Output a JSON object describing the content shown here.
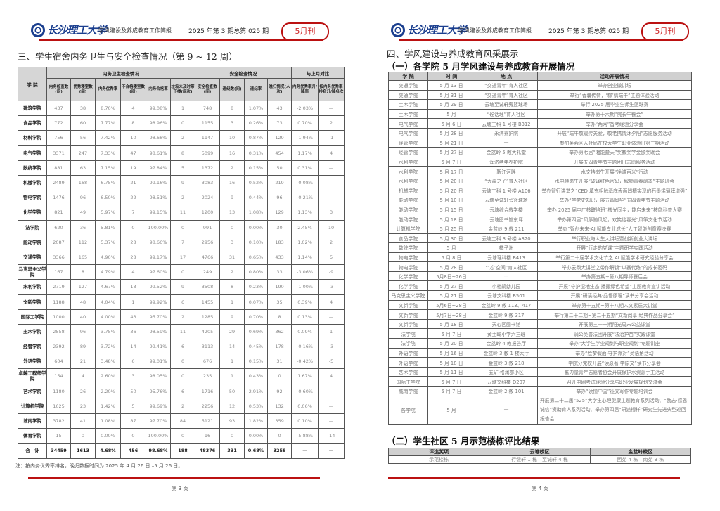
{
  "header": {
    "logo_text": "长沙理工大学",
    "brief_title": "学风建设及养成教育工作简报",
    "issue": "2025 年第 3 期总第 025 期",
    "month_badge": "5月刊",
    "accent": "#b11111"
  },
  "page3": {
    "title": "三、学生宿舍内务卫生与安全检查情况（第 9 ~ 12 周）",
    "groups": {
      "college": "学 院",
      "hygiene": "内务卫生检查情况",
      "safety": "安全检查情况",
      "compare": "与上月对比"
    },
    "columns": [
      "内务检查数(间)",
      "优秀寝室数(间)",
      "内务优秀率",
      "不合格寝室数(间)",
      "内务合格率",
      "垃圾未及时带下楼(间次)",
      "安全检查数(间)",
      "违纪数(间)",
      "违纪率",
      "晚归情况(人次)",
      "内务优秀率升/降率",
      "按内务优秀率排名升/降名次"
    ],
    "rows": [
      [
        "建筑学院",
        "437",
        "38",
        "8.70%",
        "4",
        "99.08%",
        "1",
        "748",
        "8",
        "1.07%",
        "43",
        "-2.03%",
        "—"
      ],
      [
        "食品学院",
        "772",
        "60",
        "7.77%",
        "8",
        "98.96%",
        "0",
        "1155",
        "3",
        "0.26%",
        "73",
        "0.70%",
        "2"
      ],
      [
        "材料学院",
        "756",
        "56",
        "7.42%",
        "10",
        "98.68%",
        "2",
        "1147",
        "10",
        "0.87%",
        "129",
        "-1.94%",
        "-1"
      ],
      [
        "电气学院",
        "3371",
        "247",
        "7.33%",
        "47",
        "98.61%",
        "8",
        "5099",
        "16",
        "0.31%",
        "454",
        "1.17%",
        "4"
      ],
      [
        "数统学院",
        "881",
        "63",
        "7.15%",
        "19",
        "97.84%",
        "5",
        "1372",
        "2",
        "0.15%",
        "50",
        "0.31%",
        "—"
      ],
      [
        "机械学院",
        "2489",
        "168",
        "6.75%",
        "21",
        "99.16%",
        "9",
        "3083",
        "16",
        "0.52%",
        "219",
        "-0.08%",
        "—"
      ],
      [
        "物电学院",
        "1476",
        "96",
        "6.50%",
        "22",
        "98.51%",
        "2",
        "2024",
        "9",
        "0.44%",
        "96",
        "-0.21%",
        "—"
      ],
      [
        "化学学院",
        "821",
        "49",
        "5.97%",
        "7",
        "99.15%",
        "11",
        "1200",
        "13",
        "1.08%",
        "129",
        "1.13%",
        "3"
      ],
      [
        "法学院",
        "620",
        "36",
        "5.81%",
        "0",
        "100.00%",
        "0",
        "991",
        "0",
        "0.00%",
        "30",
        "2.45%",
        "10"
      ],
      [
        "能动学院",
        "2087",
        "112",
        "5.37%",
        "28",
        "98.66%",
        "7",
        "2956",
        "3",
        "0.10%",
        "183",
        "1.02%",
        "2"
      ],
      [
        "交通学院",
        "3366",
        "165",
        "4.90%",
        "28",
        "99.17%",
        "17",
        "4766",
        "31",
        "0.65%",
        "433",
        "1.14%",
        "5"
      ],
      [
        "马克思主义学院",
        "167",
        "8",
        "4.79%",
        "4",
        "97.60%",
        "0",
        "249",
        "2",
        "0.80%",
        "33",
        "-3.06%",
        "-9"
      ],
      [
        "水利学院",
        "2719",
        "127",
        "4.67%",
        "13",
        "99.52%",
        "9",
        "3508",
        "8",
        "0.23%",
        "190",
        "-1.00%",
        "-3"
      ],
      [
        "文新学院",
        "1188",
        "48",
        "4.04%",
        "1",
        "99.92%",
        "6",
        "1455",
        "1",
        "0.07%",
        "35",
        "0.39%",
        "4"
      ],
      [
        "国际工学院",
        "1000",
        "40",
        "4.00%",
        "43",
        "95.70%",
        "2",
        "1285",
        "9",
        "0.70%",
        "8",
        "0.13%",
        "—"
      ],
      [
        "土木学院",
        "2558",
        "96",
        "3.75%",
        "36",
        "98.59%",
        "11",
        "4205",
        "29",
        "0.69%",
        "362",
        "0.09%",
        "1"
      ],
      [
        "经管学院",
        "2392",
        "89",
        "3.72%",
        "14",
        "99.41%",
        "6",
        "3113",
        "14",
        "0.45%",
        "178",
        "-0.16%",
        "-3"
      ],
      [
        "外语学院",
        "604",
        "21",
        "3.48%",
        "6",
        "99.01%",
        "0",
        "676",
        "1",
        "0.15%",
        "31",
        "-0.42%",
        "-5"
      ],
      [
        "卓越工程师学院",
        "154",
        "4",
        "2.60%",
        "3",
        "98.05%",
        "0",
        "235",
        "1",
        "0.43%",
        "0",
        "1.67%",
        "4"
      ],
      [
        "艺术学院",
        "1180",
        "26",
        "2.20%",
        "50",
        "95.76%",
        "6",
        "1716",
        "50",
        "2.91%",
        "92",
        "-0.60%",
        "—"
      ],
      [
        "计算机学院",
        "1625",
        "23",
        "1.42%",
        "5",
        "99.69%",
        "2",
        "2256",
        "12",
        "0.53%",
        "132",
        "0.06%",
        "—"
      ],
      [
        "城南学院",
        "3782",
        "41",
        "1.08%",
        "87",
        "97.70%",
        "84",
        "5121",
        "93",
        "1.82%",
        "359",
        "0.10%",
        "—"
      ],
      [
        "体育学院",
        "15",
        "0",
        "0.00%",
        "0",
        "100.00%",
        "0",
        "16",
        "0",
        "0.00%",
        "0",
        "-5.88%",
        "-14"
      ]
    ],
    "total": [
      "合　计",
      "34459",
      "1613",
      "4.68%",
      "456",
      "98.68%",
      "188",
      "48376",
      "331",
      "0.68%",
      "3258",
      "—",
      "—"
    ],
    "note": "注：按内务优秀率排名，晚归数据时间为 2025 年 4 月 26 日 –5 月 26 日。",
    "page_number": "第 3 页"
  },
  "page4": {
    "title": "四、学风建设与养成教育风采展示",
    "subtitle1": "（一）各学院 5 月学风建设与养成教育开展情况",
    "columns": [
      "学 院",
      "时 间",
      "地 点",
      "活动开展情况"
    ],
    "rows": [
      [
        "交通学院",
        "5 月 13 日",
        "“交通青年”育人社区",
        "举办创业微讲坛"
      ],
      [
        "交通学院",
        "5 月 31 日",
        "“交通青年”育人社区",
        "举行“香囊传情，‘粽’情端午”主题体验活动"
      ],
      [
        "土木学院",
        "5 月 29 日",
        "云塘至诚轩旁篮球场",
        "举行 2025 届毕业生师生篮球赛"
      ],
      [
        "土木学院",
        "5 月",
        "“砼话理”育人社区",
        "举办第十六期“院长午餐会”"
      ],
      [
        "电气学院",
        "5 月 6 日",
        "云塘工科 1 号楼 B312",
        "举办“两网”备考经验分享会"
      ],
      [
        "电气学院",
        "5 月 28 日",
        "永济养护院",
        "开展“端午敬暖传关爱，敬老携情沐夕阳”志愿服务活动"
      ],
      [
        "经管学院",
        "5 月 21 日",
        "—",
        "参加芙蓉区人社局在校大学生职业体验日第三期活动"
      ],
      [
        "经管学院",
        "5 月 27 日",
        "金盆岭 5 教大礼堂",
        "举办第七届“湘能楚天”奖教奖学金颁奖晚会"
      ],
      [
        "水利学院",
        "5 月 7 日",
        "润济老年养护院",
        "开展五四青年节主题团日志愿服务活动"
      ],
      [
        "水利学院",
        "5 月 17 日",
        "靳江河畔",
        "水文特岗生开展“净滩百米”行动"
      ],
      [
        "水利学院",
        "5 月 20 日",
        "“大禹之子”育人社区",
        "水电特岗生开展“破译红色密码，解锁青春副本”主题班会"
      ],
      [
        "机械学院",
        "5 月 20 日",
        "云塘工科 1 号楼 A106",
        "举办智行讲堂之“CED 填充相触基底表面凹槽实现的石墨烯薄膜增强”"
      ],
      [
        "能动学院",
        "5 月 10 日",
        "云塘至诚轩旁篮球场",
        "举办“学党史知识，展五四风华”五四青年节主题活动"
      ],
      [
        "能动学院",
        "5 月 15 日",
        "云塘综合教学楼",
        "举办 2025 届中广核联培班“核光同尘，能启未来”核能科普大赛"
      ],
      [
        "能动学院",
        "5 月 18 日",
        "云塘图书馆东坪",
        "举办第四届“风筝随风起，欢笑绽春光”风筝文化节活动"
      ],
      [
        "计算机学院",
        "5 月 25 日",
        "金盆岭 9 教 211",
        "举办“智创未来·AI 赋能专业成长”人工智能创意赛决赛"
      ],
      [
        "食品学院",
        "5 月 30 日",
        "云塘工科 3 号楼 A320",
        "举行职业与人生大讲坛暨创新创业大讲坛"
      ],
      [
        "数统学院",
        "5 月",
        "橘子洲",
        "开展“行走的党课”主题研学实践活动"
      ],
      [
        "物电学院",
        "5 月 8 日",
        "云塘理科楼 B413",
        "举行第二十届学术文化节之 AI 赋能学术研究经验分享会"
      ],
      [
        "物电学院",
        "5 月 28 日",
        "“‘芯’空间”育人社区",
        "举办云鼎大讲堂之带你解锁“以赛代练”的成长密码"
      ],
      [
        "化学学院",
        "5月8日~26日",
        "—",
        "举办第五期~第八期导师餐后会"
      ],
      [
        "化学学院",
        "5 月 27 日",
        "小杜鹃幼儿园",
        "开展“守护湿地生态 播撒绿色希望”主题教育宣讲活动"
      ],
      [
        "马克思主义学院",
        "5 月 21 日",
        "云塘文科楼 B501",
        "开展“研读经典·品悟原理”读书分享会活动"
      ],
      [
        "文新学院",
        "5月6日~28日",
        "金盆岭 9 教 113、417",
        "举办第十五期~第十八期人文素质大讲堂"
      ],
      [
        "文新学院",
        "5月7日~28日",
        "金盆岭 9 教 317",
        "举行第二十二期~第二十五期“文新阅享·经典作品分享会”"
      ],
      [
        "文新学院",
        "5 月 18 日",
        "天心区图书馆",
        "开展第三十一期阳光周末公益课堂"
      ],
      [
        "法学院",
        "5 月 7 日",
        "黄土岭小学六三班",
        "蒲公英普法团开展“法治护苗”实践课堂"
      ],
      [
        "法学院",
        "5 月 20 日",
        "金盆岭 4 教报告厅",
        "举办“大学生学业规划与职业规划”专题讲座"
      ],
      [
        "外语学院",
        "5 月 16 日",
        "金盆岭 3 教 1 楼大厅",
        "举办“绘梦假面·守护派对”英语角活动"
      ],
      [
        "外语学院",
        "5 月 18 日",
        "金盆岭 3 教 218",
        "学院分党校开展“读原著·学原文”读书分享会"
      ],
      [
        "艺术学院",
        "5 月 11 日",
        "五矿·格澜郡小区",
        "蓄力量青年志愿者协会开展保护水资源手工活动"
      ],
      [
        "国际工学院",
        "5 月 7 日",
        "云塘文科楼 D207",
        "召开电网考试经验分享与职业发展规划交流会"
      ],
      [
        "城南学院",
        "5 月 7 日",
        "金盆岭 2 教 101",
        "举办“读懂中国”征文写作专题培训会"
      ]
    ],
    "last_row": [
      "各学院",
      "5 月",
      "—",
      "开展第二十二届“525”大学生心理健康主题教育系列活动、“励志·感恩·诚信”资助育人系列活动、举办第四届“研途榜样”研究生先进典型巡回报告会"
    ],
    "subtitle2": "（二）学生社区 5 月示范楼栋评比结果",
    "award_columns": [
      "评选奖项",
      "云塘校区",
      "金盆岭校区"
    ],
    "award_row": [
      "示范楼栋",
      "行健轩 1 栋　至诚轩 4 栋",
      "西苑 4 栋　南苑 3 栋"
    ],
    "page_number": "第 4 页"
  }
}
